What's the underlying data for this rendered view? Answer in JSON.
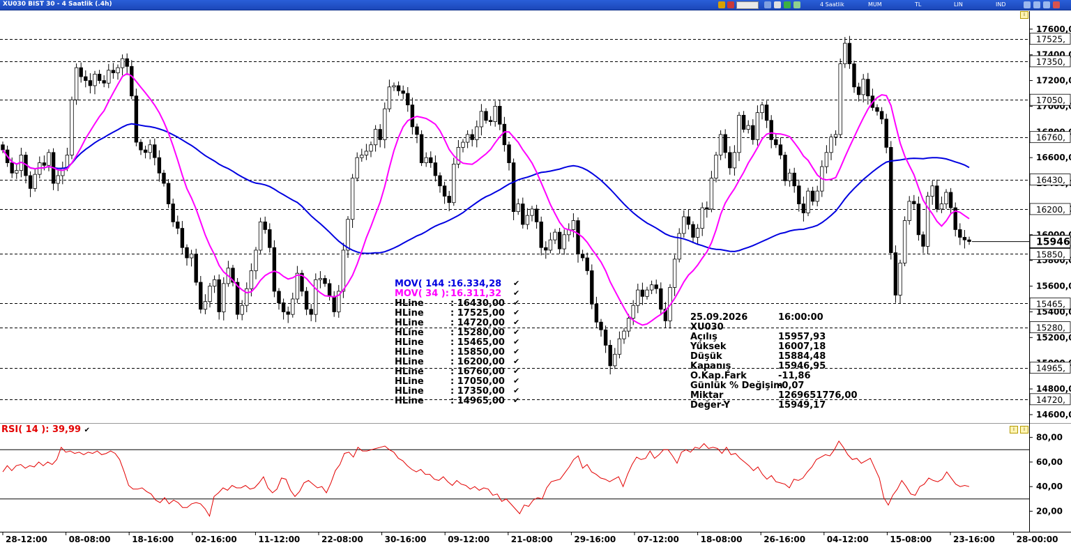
{
  "window": {
    "title": "XU030 BIST 30 - 4 Saatlik (.4h)"
  },
  "toolbar": {
    "period": "4 Saatlik",
    "chart_style": "MUM",
    "currency": "TL",
    "scale": "LIN",
    "mode": "IND"
  },
  "overlays": [
    {
      "name": "MOV( 144 :",
      "value": "16.334,28",
      "color": "#0000e0"
    },
    {
      "name": "MOV( 34 ):",
      "value": "16.311,32",
      "color": "#ff00ff"
    },
    {
      "name": "HLine",
      "value": ": 16430,00",
      "color": "#000000"
    },
    {
      "name": "HLine",
      "value": ": 17525,00",
      "color": "#000000"
    },
    {
      "name": "HLine",
      "value": ": 14720,00",
      "color": "#000000"
    },
    {
      "name": "HLine",
      "value": ": 15280,00",
      "color": "#000000"
    },
    {
      "name": "HLine",
      "value": ": 15465,00",
      "color": "#000000"
    },
    {
      "name": "HLine",
      "value": ": 15850,00",
      "color": "#000000"
    },
    {
      "name": "HLine",
      "value": ": 16200,00",
      "color": "#000000"
    },
    {
      "name": "HLine",
      "value": ": 16760,00",
      "color": "#000000"
    },
    {
      "name": "HLine",
      "value": ": 17050,00",
      "color": "#000000"
    },
    {
      "name": "HLine",
      "value": ": 17350,00",
      "color": "#000000"
    },
    {
      "name": "HLine",
      "value": ": 14965,00",
      "color": "#000000"
    }
  ],
  "info": [
    {
      "label": "25.09.2026",
      "value": "16:00:00"
    },
    {
      "label": "XU030",
      "value": ""
    },
    {
      "label": "Açılış",
      "value": "15957,93"
    },
    {
      "label": "Yüksek",
      "value": "16007,18"
    },
    {
      "label": "Düşük",
      "value": "15884,48"
    },
    {
      "label": "Kapanış",
      "value": "15946,95"
    },
    {
      "label": "O.Kap.Fark",
      "value": "-11,86"
    },
    {
      "label": "Günlük % Değişim",
      "value": "-0,07"
    },
    {
      "label": "Miktar",
      "value": "1269651776,00"
    },
    {
      "label": "Değer-Y",
      "value": "15949,17"
    }
  ],
  "rsi_label": "RSI( 14 ): 39,99",
  "colors": {
    "up": "#ffffff",
    "down": "#000000",
    "mov144": "#0000e0",
    "mov34": "#ff00ff",
    "rsi": "#e30000",
    "title_bar": "#1c47b9"
  },
  "chart_data": {
    "type": "candlestick",
    "symbol": "XU030",
    "timeframe": "4 Saatlik",
    "x_tick_labels": [
      "28-12:00",
      "08-08:00",
      "18-16:00",
      "02-16:00",
      "11-12:00",
      "22-08:00",
      "30-16:00",
      "09-12:00",
      "21-08:00",
      "29-16:00",
      "07-12:00",
      "18-08:00",
      "26-16:00",
      "04-12:00",
      "15-08:00",
      "23-16:00",
      "28-00:00"
    ],
    "y_tick_labels": [
      "17600,0",
      "17400,0",
      "17200,0",
      "17000,0",
      "16800,0",
      "16600,0",
      "16400,0",
      "16200,0",
      "16000,0",
      "15800,0",
      "15600,0",
      "15400,0",
      "15200,0",
      "15000,0",
      "14800,0",
      "14600,0"
    ],
    "ylim": [
      14540,
      17740
    ],
    "close": [
      16660,
      16560,
      16480,
      16500,
      16620,
      16460,
      16360,
      16470,
      16560,
      16540,
      16640,
      16400,
      16460,
      16520,
      16620,
      17050,
      17300,
      17230,
      17200,
      17160,
      17250,
      17200,
      17180,
      17280,
      17260,
      17300,
      17370,
      17310,
      17080,
      16720,
      16660,
      16640,
      16700,
      16600,
      16480,
      16400,
      16240,
      16100,
      16050,
      15900,
      15820,
      15850,
      15630,
      15420,
      15480,
      15600,
      15650,
      15400,
      15620,
      15740,
      15630,
      15380,
      15450,
      15580,
      15720,
      15880,
      16100,
      16040,
      15900,
      15560,
      15470,
      15400,
      15380,
      15500,
      15700,
      15560,
      15420,
      15380,
      15650,
      15660,
      15620,
      15520,
      15400,
      15560,
      15880,
      16120,
      16440,
      16600,
      16620,
      16650,
      16700,
      16820,
      16740,
      16980,
      17150,
      17160,
      17120,
      17100,
      17010,
      16840,
      16780,
      16560,
      16600,
      16560,
      16460,
      16380,
      16300,
      16250,
      16550,
      16680,
      16720,
      16780,
      16740,
      16840,
      16960,
      16890,
      16880,
      17000,
      16860,
      16700,
      16560,
      16180,
      16240,
      16080,
      16150,
      16200,
      16100,
      15900,
      15880,
      15960,
      16020,
      15890,
      16000,
      16040,
      16110,
      15850,
      15820,
      15720,
      15460,
      15320,
      15260,
      15140,
      14980,
      15070,
      15190,
      15250,
      15350,
      15450,
      15570,
      15520,
      15570,
      15610,
      15580,
      15420,
      15330,
      15590,
      15810,
      16010,
      16140,
      16080,
      15980,
      16050,
      16210,
      16200,
      16440,
      16620,
      16780,
      16640,
      16520,
      16640,
      16930,
      16820,
      16850,
      16740,
      16950,
      17010,
      16890,
      16740,
      16700,
      16620,
      16420,
      16480,
      16380,
      16240,
      16170,
      16340,
      16260,
      16340,
      16530,
      16640,
      16760,
      16780,
      17330,
      17490,
      17330,
      17150,
      17090,
      17210,
      17080,
      16990,
      16960,
      16900,
      16680,
      15860,
      15530,
      15780,
      16110,
      16260,
      16240,
      16000,
      15910,
      16300,
      16380,
      16200,
      16240,
      16330,
      16210,
      16040,
      15980,
      15960,
      15947
    ],
    "series": [
      {
        "name": "MOV( 144 :",
        "value": 16334.28
      },
      {
        "name": "MOV( 34 ):",
        "value": 16311.32
      },
      {
        "name": "HLine",
        "levels": [
          16430,
          17525,
          14720,
          15280,
          15465,
          15850,
          16200,
          16760,
          17050,
          17350,
          14965
        ]
      }
    ],
    "last_value": "15946,",
    "rsi": {
      "name": "RSI( 14 )",
      "value": 39.99,
      "ylim": [
        5,
        90
      ],
      "y_tick_labels": [
        "80,00",
        "60,00",
        "40,00",
        "20,00"
      ],
      "levels": [
        70,
        30
      ],
      "values": [
        52,
        57,
        53,
        57,
        58,
        55,
        57,
        56,
        60,
        57,
        60,
        58,
        62,
        72,
        68,
        69,
        67,
        68,
        66,
        68,
        67,
        69,
        66,
        67,
        69,
        67,
        62,
        52,
        41,
        38,
        38,
        39,
        36,
        34,
        29,
        27,
        31,
        26,
        29,
        27,
        23,
        23,
        26,
        27,
        26,
        22,
        16,
        32,
        35,
        39,
        37,
        41,
        39,
        39,
        41,
        38,
        39,
        43,
        48,
        39,
        35,
        38,
        47,
        46,
        37,
        32,
        36,
        43,
        45,
        42,
        39,
        40,
        35,
        43,
        53,
        58,
        67,
        68,
        64,
        72,
        69,
        69,
        70,
        71,
        72,
        73,
        70,
        68,
        63,
        61,
        57,
        54,
        52,
        54,
        50,
        50,
        46,
        45,
        48,
        44,
        41,
        45,
        42,
        41,
        38,
        40,
        37,
        39,
        38,
        33,
        34,
        28,
        30,
        26,
        22,
        18,
        25,
        24,
        29,
        31,
        30,
        39,
        44,
        45,
        46,
        51,
        56,
        62,
        65,
        55,
        58,
        52,
        50,
        47,
        46,
        44,
        46,
        48,
        40,
        50,
        58,
        64,
        62,
        63,
        69,
        63,
        66,
        70,
        70,
        65,
        59,
        68,
        70,
        68,
        72,
        71,
        75,
        71,
        72,
        71,
        67,
        72,
        66,
        67,
        63,
        60,
        57,
        53,
        56,
        50,
        46,
        49,
        44,
        43,
        42,
        39,
        46,
        45,
        47,
        52,
        56,
        62,
        64,
        66,
        65,
        70,
        77,
        72,
        66,
        62,
        63,
        59,
        61,
        63,
        55,
        47,
        31,
        25,
        33,
        38,
        45,
        40,
        34,
        33,
        40,
        42,
        47,
        45,
        44,
        46,
        52,
        47,
        42,
        40,
        41,
        40
      ]
    }
  }
}
